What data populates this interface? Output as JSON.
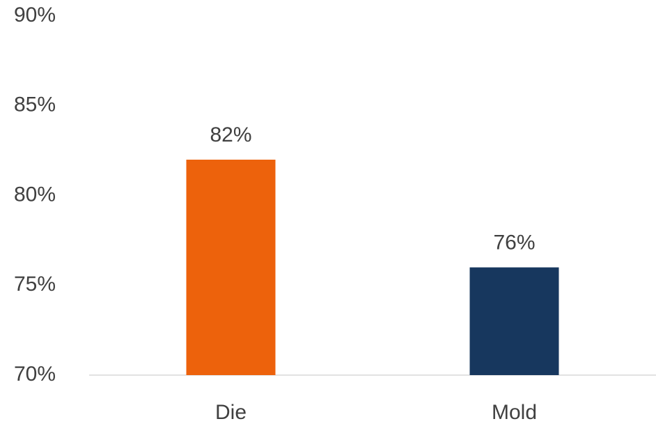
{
  "chart_data": {
    "type": "bar",
    "categories": [
      "Die",
      "Mold"
    ],
    "values": [
      82,
      76
    ],
    "value_labels": [
      "82%",
      "76%"
    ],
    "colors": [
      "#ed620c",
      "#17375e"
    ],
    "ylim": [
      70,
      90
    ],
    "yticks": [
      {
        "value": 70,
        "label": "70%"
      },
      {
        "value": 75,
        "label": "75%"
      },
      {
        "value": 80,
        "label": "80%"
      },
      {
        "value": 85,
        "label": "85%"
      },
      {
        "value": 90,
        "label": "90%"
      }
    ],
    "grid": false
  }
}
